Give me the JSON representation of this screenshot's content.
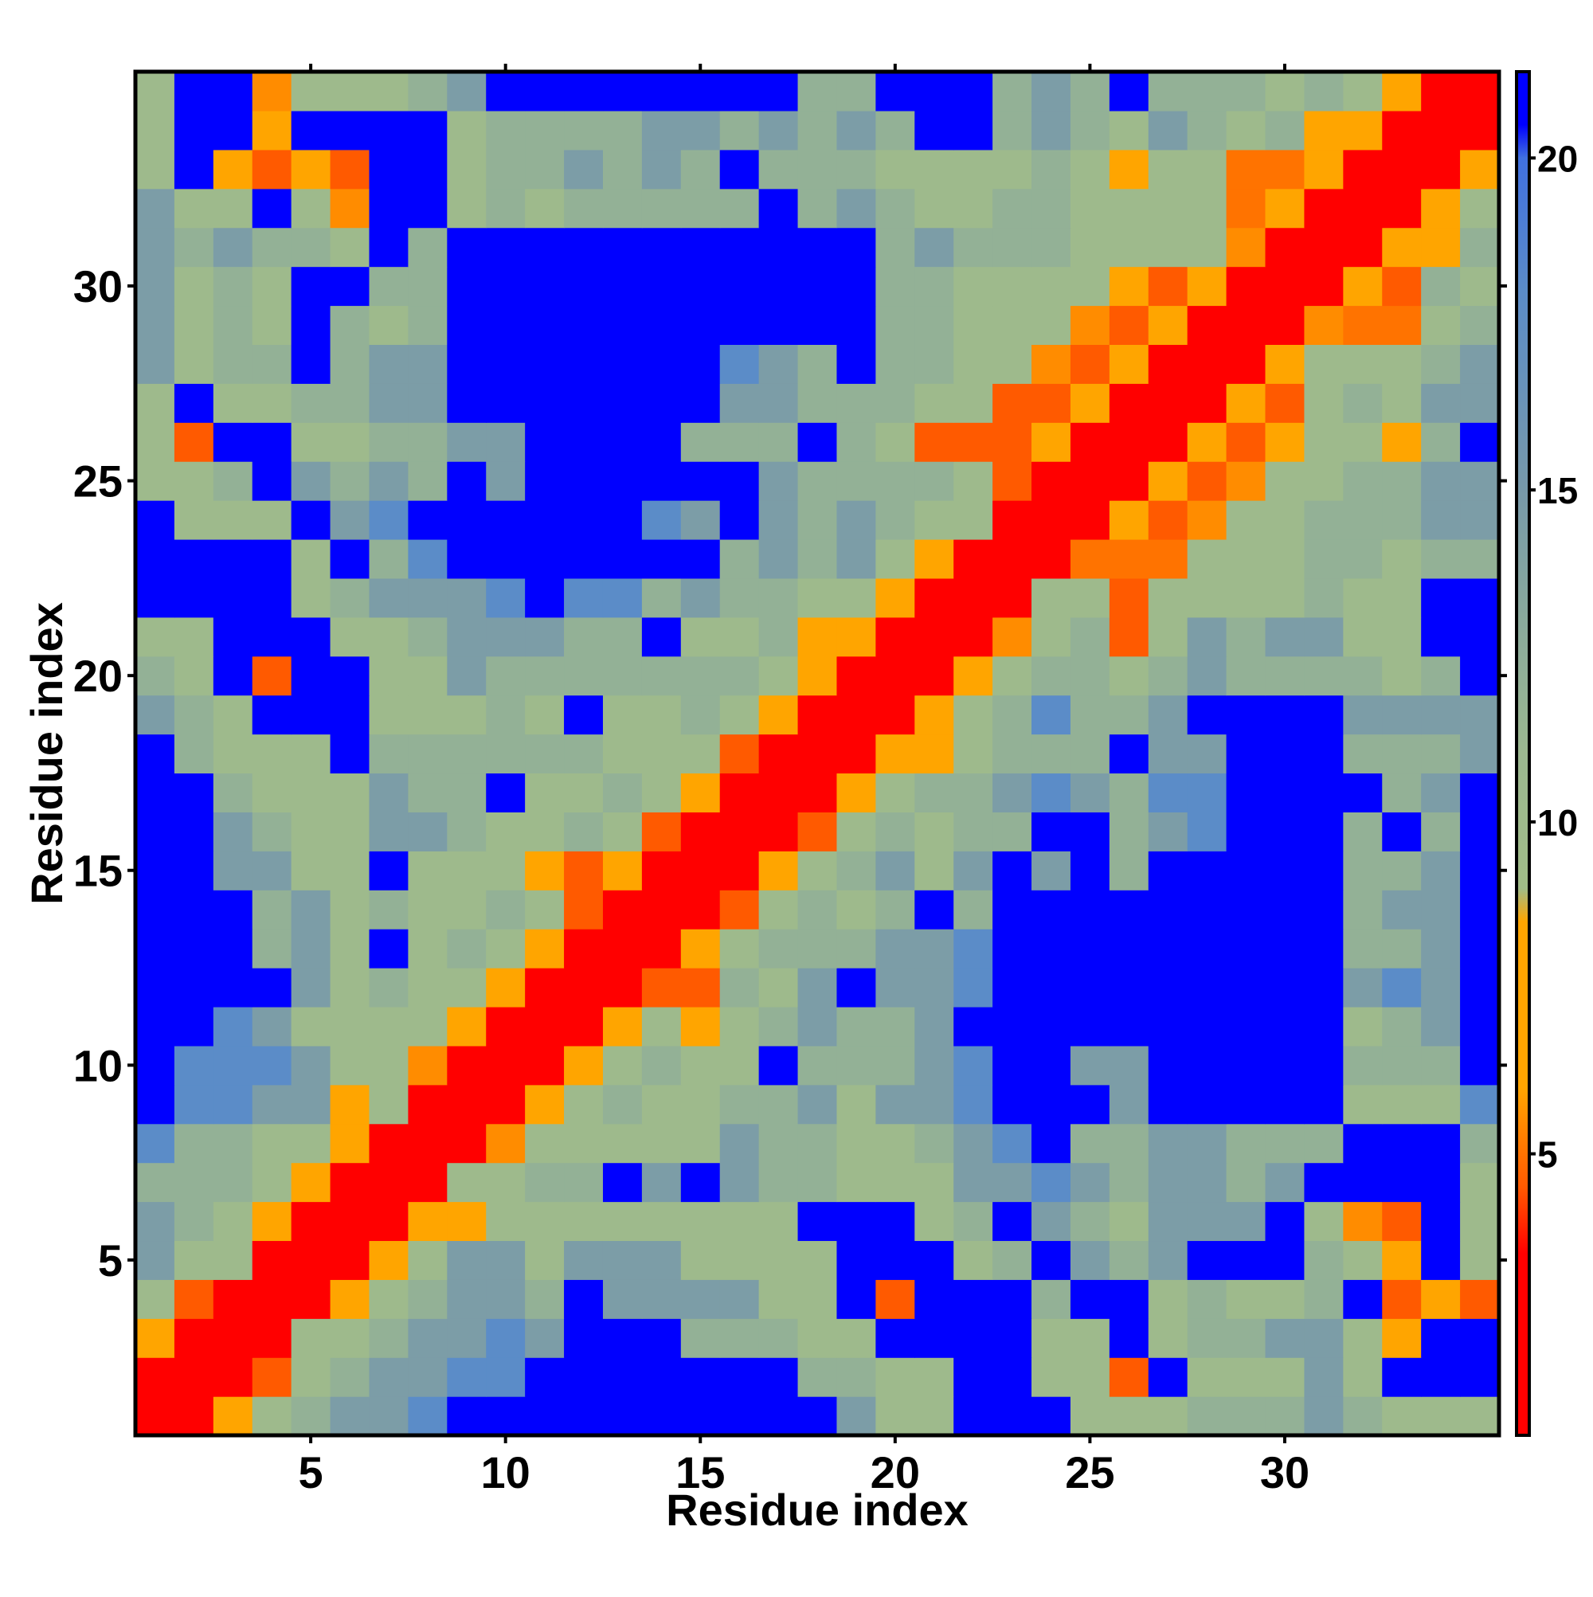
{
  "chart_data": {
    "type": "heatmap",
    "x_label": "Residue index",
    "y_label": "Residue index",
    "x": [
      1,
      2,
      3,
      4,
      5,
      6,
      7,
      8,
      9,
      10,
      11,
      12,
      13,
      14,
      15,
      16,
      17,
      18,
      19,
      20,
      21,
      22,
      23,
      24,
      25,
      26,
      27,
      28,
      29,
      30,
      31,
      32,
      33,
      34,
      35
    ],
    "y": [
      1,
      2,
      3,
      4,
      5,
      6,
      7,
      8,
      9,
      10,
      11,
      12,
      13,
      14,
      15,
      16,
      17,
      18,
      19,
      20,
      21,
      22,
      23,
      24,
      25,
      26,
      27,
      28,
      29,
      30,
      31,
      32,
      33,
      34,
      35
    ],
    "xlim": [
      0.5,
      35.5
    ],
    "ylim": [
      0.5,
      35.5
    ],
    "xticks": [
      5,
      10,
      15,
      20,
      25,
      30
    ],
    "yticks": [
      5,
      10,
      15,
      20,
      25,
      30
    ],
    "zlim": [
      0.76,
      21.3
    ],
    "zticks": [
      5,
      10,
      15,
      20
    ],
    "colorscale": [
      [
        0.76,
        "#ff0000"
      ],
      [
        3.5,
        "#ff0000"
      ],
      [
        4.5,
        "#ff5a00"
      ],
      [
        6,
        "#ffa500"
      ],
      [
        8.5,
        "#ffa500"
      ],
      [
        9,
        "#a0bc88"
      ],
      [
        11,
        "#9cb890"
      ],
      [
        13,
        "#8aaa9c"
      ],
      [
        15,
        "#7799aa"
      ],
      [
        18,
        "#5b8cc8"
      ],
      [
        20,
        "#4070e0"
      ],
      [
        20.5,
        "#0000ff"
      ],
      [
        21.3,
        "#0000ff"
      ]
    ],
    "z": [
      [
        2,
        2,
        7,
        10,
        12,
        14.5,
        14.5,
        18,
        21,
        21,
        21,
        21,
        21,
        21,
        21,
        21,
        21,
        21,
        14.5,
        10,
        10,
        21,
        21,
        21,
        10,
        10,
        10,
        12,
        12,
        12,
        14.5,
        12,
        10,
        10,
        10
      ],
      [
        2,
        2,
        2,
        4.5,
        10,
        12,
        14.5,
        14.5,
        18,
        18,
        21,
        21,
        21,
        21,
        21,
        21,
        21,
        12,
        12,
        10,
        10,
        21,
        21,
        10,
        10,
        4.5,
        21,
        10,
        10,
        10,
        14.5,
        10,
        21,
        21,
        21
      ],
      [
        7,
        2,
        2,
        2,
        10,
        10,
        12,
        14.5,
        14.5,
        18,
        14.5,
        21,
        21,
        21,
        12,
        12,
        12,
        10,
        10,
        21,
        21,
        21,
        21,
        10,
        10,
        21,
        10,
        12,
        12,
        14.5,
        14.5,
        10,
        7,
        21,
        21
      ],
      [
        10,
        4.5,
        2,
        2,
        2,
        7,
        10,
        12,
        14.5,
        14.5,
        12,
        21,
        14.5,
        14.5,
        14.5,
        14.5,
        10,
        10,
        21,
        4.5,
        21,
        21,
        21,
        12,
        21,
        21,
        10,
        12,
        10,
        10,
        12,
        21,
        4.5,
        7,
        4.5
      ],
      [
        14.5,
        10,
        10,
        2,
        2,
        2,
        7,
        10,
        14.5,
        14.5,
        10,
        14.5,
        14.5,
        14.5,
        10,
        10,
        10,
        10,
        21,
        21,
        21,
        10,
        12,
        21,
        14.5,
        12,
        14.5,
        21,
        21,
        21,
        12,
        10,
        7,
        21,
        10
      ],
      [
        14.5,
        12,
        10,
        7,
        2,
        2,
        2,
        7,
        7,
        10,
        10,
        10,
        10,
        10,
        10,
        10,
        10,
        21,
        21,
        21,
        10,
        12,
        21,
        14.5,
        12,
        10,
        14.5,
        14.5,
        14.5,
        21,
        10,
        5.5,
        4.5,
        21,
        10
      ],
      [
        12,
        12,
        12,
        10,
        7,
        2,
        2,
        2,
        10,
        10,
        12,
        12,
        21,
        14.5,
        21,
        14.5,
        12,
        12,
        10,
        10,
        10,
        14.5,
        14.5,
        18,
        14.5,
        12,
        14.5,
        14.5,
        12,
        14.5,
        21,
        21,
        21,
        21,
        10
      ],
      [
        18,
        12,
        12,
        10,
        10,
        7,
        2,
        2,
        2,
        5.5,
        10,
        10,
        10,
        10,
        10,
        14.5,
        12,
        12,
        10,
        10,
        12,
        14.5,
        18,
        21,
        12,
        12,
        14.5,
        14.5,
        12,
        12,
        12,
        21,
        21,
        21,
        12
      ],
      [
        21,
        18,
        18,
        14.5,
        14.5,
        7,
        10,
        2,
        2,
        2,
        7,
        10,
        12,
        10,
        10,
        12,
        12,
        14.5,
        10,
        14.5,
        14.5,
        18,
        21,
        21,
        21,
        14.5,
        21,
        21,
        21,
        21,
        21,
        10,
        10,
        10,
        18
      ],
      [
        21,
        18,
        18,
        18,
        14.5,
        10,
        10,
        5.5,
        2,
        2,
        2,
        7,
        10,
        12,
        10,
        10,
        21,
        12,
        12,
        12,
        14.5,
        18,
        21,
        21,
        14.5,
        14.5,
        21,
        21,
        21,
        21,
        21,
        12,
        12,
        12,
        21
      ],
      [
        21,
        21,
        18,
        14.5,
        10,
        10,
        10,
        10,
        7,
        2,
        2,
        2,
        7,
        10,
        7,
        10,
        12,
        14.5,
        12,
        12,
        14.5,
        21,
        21,
        21,
        21,
        21,
        21,
        21,
        21,
        21,
        21,
        10,
        12,
        14.5,
        21
      ],
      [
        21,
        21,
        21,
        21,
        14.5,
        10,
        12,
        10,
        10,
        7,
        2,
        2,
        2,
        4.5,
        4.5,
        12,
        10,
        14.5,
        21,
        14.5,
        14.5,
        18,
        21,
        21,
        21,
        21,
        21,
        21,
        21,
        21,
        21,
        14.5,
        18,
        14.5,
        21
      ],
      [
        21,
        21,
        21,
        12,
        14.5,
        10,
        21,
        10,
        12,
        10,
        7,
        2,
        2,
        2,
        7,
        10,
        12,
        12,
        12,
        14.5,
        14.5,
        18,
        21,
        21,
        21,
        21,
        21,
        21,
        21,
        21,
        21,
        12,
        12,
        14.5,
        21
      ],
      [
        21,
        21,
        21,
        12,
        14.5,
        10,
        12,
        10,
        10,
        12,
        10,
        4.5,
        2,
        2,
        2,
        4.5,
        10,
        12,
        10,
        12,
        21,
        12,
        21,
        21,
        21,
        21,
        21,
        21,
        21,
        21,
        21,
        12,
        14.5,
        14.5,
        21
      ],
      [
        21,
        21,
        14.5,
        14.5,
        10,
        10,
        21,
        10,
        10,
        10,
        7,
        4.5,
        7,
        2,
        2,
        2,
        7,
        10,
        12,
        14.5,
        10,
        14.5,
        21,
        14.5,
        21,
        12,
        21,
        21,
        21,
        21,
        21,
        12,
        12,
        14.5,
        21
      ],
      [
        21,
        21,
        14.5,
        12,
        10,
        10,
        14.5,
        14.5,
        12,
        10,
        10,
        12,
        10,
        4.5,
        2,
        2,
        2,
        4.5,
        10,
        12,
        10,
        12,
        12,
        21,
        21,
        12,
        14.5,
        18,
        21,
        21,
        21,
        12,
        21,
        12,
        21
      ],
      [
        21,
        21,
        12,
        10,
        10,
        10,
        14.5,
        12,
        12,
        21,
        10,
        10,
        12,
        10,
        7,
        2,
        2,
        2,
        7,
        10,
        12,
        12,
        14.5,
        18,
        14.5,
        12,
        18,
        18,
        21,
        21,
        21,
        21,
        12,
        14.5,
        21
      ],
      [
        21,
        12,
        10,
        10,
        10,
        21,
        12,
        12,
        12,
        12,
        12,
        12,
        10,
        10,
        10,
        4.5,
        2,
        2,
        2,
        7,
        7,
        10,
        12,
        12,
        12,
        21,
        14.5,
        14.5,
        21,
        21,
        21,
        12,
        12,
        12,
        14.5
      ],
      [
        14.5,
        12,
        10,
        21,
        21,
        21,
        10,
        10,
        10,
        12,
        10,
        21,
        10,
        10,
        12,
        10,
        7,
        2,
        2,
        2,
        7,
        10,
        12,
        18,
        12,
        12,
        14.5,
        21,
        21,
        21,
        21,
        14.5,
        14.5,
        14.5,
        14.5
      ],
      [
        12,
        10,
        21,
        4.5,
        21,
        21,
        10,
        10,
        14.5,
        12,
        12,
        12,
        12,
        12,
        12,
        12,
        10,
        7,
        2,
        2,
        2,
        7,
        10,
        12,
        12,
        10,
        12,
        14.5,
        12,
        12,
        12,
        12,
        10,
        12,
        21
      ],
      [
        10,
        10,
        21,
        21,
        21,
        10,
        10,
        12,
        14.5,
        14.5,
        14.5,
        12,
        12,
        21,
        10,
        10,
        12,
        7,
        7,
        2,
        2,
        2,
        5.5,
        10,
        12,
        4.5,
        10,
        14.5,
        12,
        14.5,
        14.5,
        10,
        10,
        21,
        21
      ],
      [
        21,
        21,
        21,
        21,
        10,
        12,
        14.5,
        14.5,
        14.5,
        18,
        21,
        18,
        18,
        12,
        14.5,
        12,
        12,
        10,
        10,
        7,
        2,
        2,
        2,
        10,
        10,
        4.5,
        10,
        10,
        10,
        10,
        12,
        10,
        10,
        21,
        21
      ],
      [
        21,
        21,
        21,
        21,
        10,
        21,
        12,
        18,
        21,
        21,
        21,
        21,
        21,
        21,
        21,
        12,
        14.5,
        12,
        14.5,
        10,
        6,
        2,
        2,
        2,
        5,
        5,
        5,
        10,
        10,
        10,
        12,
        12,
        10,
        12,
        12
      ],
      [
        21,
        10,
        10,
        10,
        21,
        14.5,
        18,
        21,
        21,
        21,
        21,
        21,
        21,
        18,
        14.5,
        21,
        14.5,
        12,
        14.5,
        12,
        10,
        10,
        2,
        2,
        2,
        7,
        4.5,
        5.5,
        10,
        10,
        12,
        12,
        12,
        14.5,
        14.5
      ],
      [
        10,
        10,
        12,
        21,
        14.5,
        12,
        14.5,
        12,
        21,
        14.5,
        21,
        21,
        21,
        21,
        21,
        21,
        14.5,
        12,
        12,
        12,
        12,
        10,
        4.5,
        2,
        2,
        2,
        7,
        4.5,
        5.5,
        10,
        10,
        12,
        12,
        14.5,
        14.5
      ],
      [
        10,
        4.5,
        21,
        21,
        10,
        10,
        12,
        12,
        14.5,
        14.5,
        21,
        21,
        21,
        21,
        12,
        12,
        12,
        21,
        12,
        10,
        4.5,
        4.5,
        4.5,
        7,
        2,
        2,
        2,
        7,
        4.5,
        6,
        10,
        10,
        7,
        12,
        21
      ],
      [
        10,
        21,
        10,
        10,
        12,
        12,
        14.5,
        14.5,
        21,
        21,
        21,
        21,
        21,
        21,
        21,
        14.5,
        14.5,
        12,
        12,
        12,
        10,
        10,
        4.5,
        4.5,
        7,
        2,
        2,
        2,
        7,
        4.5,
        10,
        12,
        10,
        14.5,
        14.5
      ],
      [
        14.5,
        10,
        12,
        12,
        21,
        12,
        14.5,
        14.5,
        21,
        21,
        21,
        21,
        21,
        21,
        21,
        18,
        14.5,
        12,
        21,
        12,
        12,
        10,
        10,
        5.5,
        4.5,
        7,
        2,
        2,
        2,
        7,
        10,
        10,
        10,
        12,
        14.5
      ],
      [
        14.5,
        10,
        12,
        10,
        21,
        12,
        10,
        12,
        21,
        21,
        21,
        21,
        21,
        21,
        21,
        21,
        21,
        21,
        21,
        12,
        12,
        10,
        10,
        10,
        5.5,
        4.5,
        7,
        2,
        2,
        2,
        5.5,
        5,
        5,
        10,
        12
      ],
      [
        14.5,
        10,
        12,
        10,
        21,
        21,
        12,
        12,
        21,
        21,
        21,
        21,
        21,
        21,
        21,
        21,
        21,
        21,
        21,
        12,
        12,
        10,
        10,
        10,
        10,
        6,
        4.5,
        7,
        2,
        2,
        2,
        7,
        4.5,
        12,
        10
      ],
      [
        14.5,
        12,
        14.5,
        12,
        12,
        10,
        21,
        12,
        21,
        21,
        21,
        21,
        21,
        21,
        21,
        21,
        21,
        21,
        21,
        12,
        14.5,
        12,
        12,
        12,
        10,
        10,
        10,
        10,
        5.5,
        2,
        2,
        2,
        7,
        7,
        12
      ],
      [
        14.5,
        10,
        10,
        21,
        10,
        5.5,
        21,
        21,
        10,
        12,
        10,
        12,
        12,
        12,
        12,
        12,
        21,
        12,
        14.5,
        12,
        10,
        10,
        12,
        12,
        10,
        10,
        10,
        10,
        5,
        7,
        2,
        2,
        2,
        7,
        10
      ],
      [
        10,
        21,
        7,
        4.5,
        7,
        4.5,
        21,
        21,
        10,
        12,
        12,
        14.5,
        12,
        14.5,
        12,
        21,
        12,
        12,
        12,
        10,
        10,
        10,
        10,
        12,
        10,
        7,
        10,
        10,
        5,
        5,
        7,
        2,
        2,
        2,
        7
      ],
      [
        10,
        21,
        21,
        7,
        21,
        21,
        21,
        21,
        10,
        12,
        12,
        12,
        12,
        14.5,
        14.5,
        12,
        14.5,
        12,
        14.5,
        12,
        21,
        21,
        12,
        14.5,
        12,
        10,
        14.5,
        12,
        10,
        12,
        7,
        7,
        2,
        2,
        2
      ],
      [
        10,
        21,
        21,
        5.5,
        10,
        10,
        10,
        12,
        14.5,
        21,
        21,
        21,
        21,
        21,
        21,
        21,
        21,
        12,
        12,
        21,
        21,
        21,
        12,
        14.5,
        12,
        21,
        12,
        12,
        12,
        10,
        12,
        10,
        7,
        2,
        2
      ]
    ]
  }
}
